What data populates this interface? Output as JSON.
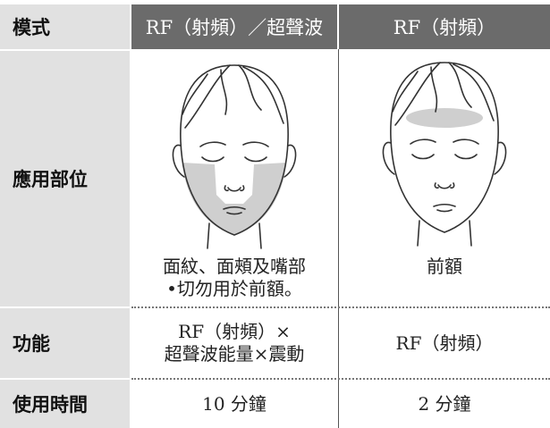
{
  "table": {
    "header": [
      "模式",
      "RF（射頻）／超聲波",
      "RF（射頻）"
    ],
    "rows": [
      {
        "label": "應用部位",
        "cells": [
          [
            "面紋、面頰及嘴部",
            "•切勿用於前額。"
          ],
          [
            "前額"
          ]
        ]
      },
      {
        "label": "功能",
        "cells": [
          [
            "RF（射頻）×",
            "超聲波能量×震動"
          ],
          [
            "RF（射頻）"
          ]
        ]
      },
      {
        "label": "使用時間",
        "cells": [
          [
            "10 分鐘"
          ],
          [
            "2 分鐘"
          ]
        ]
      }
    ]
  }
}
